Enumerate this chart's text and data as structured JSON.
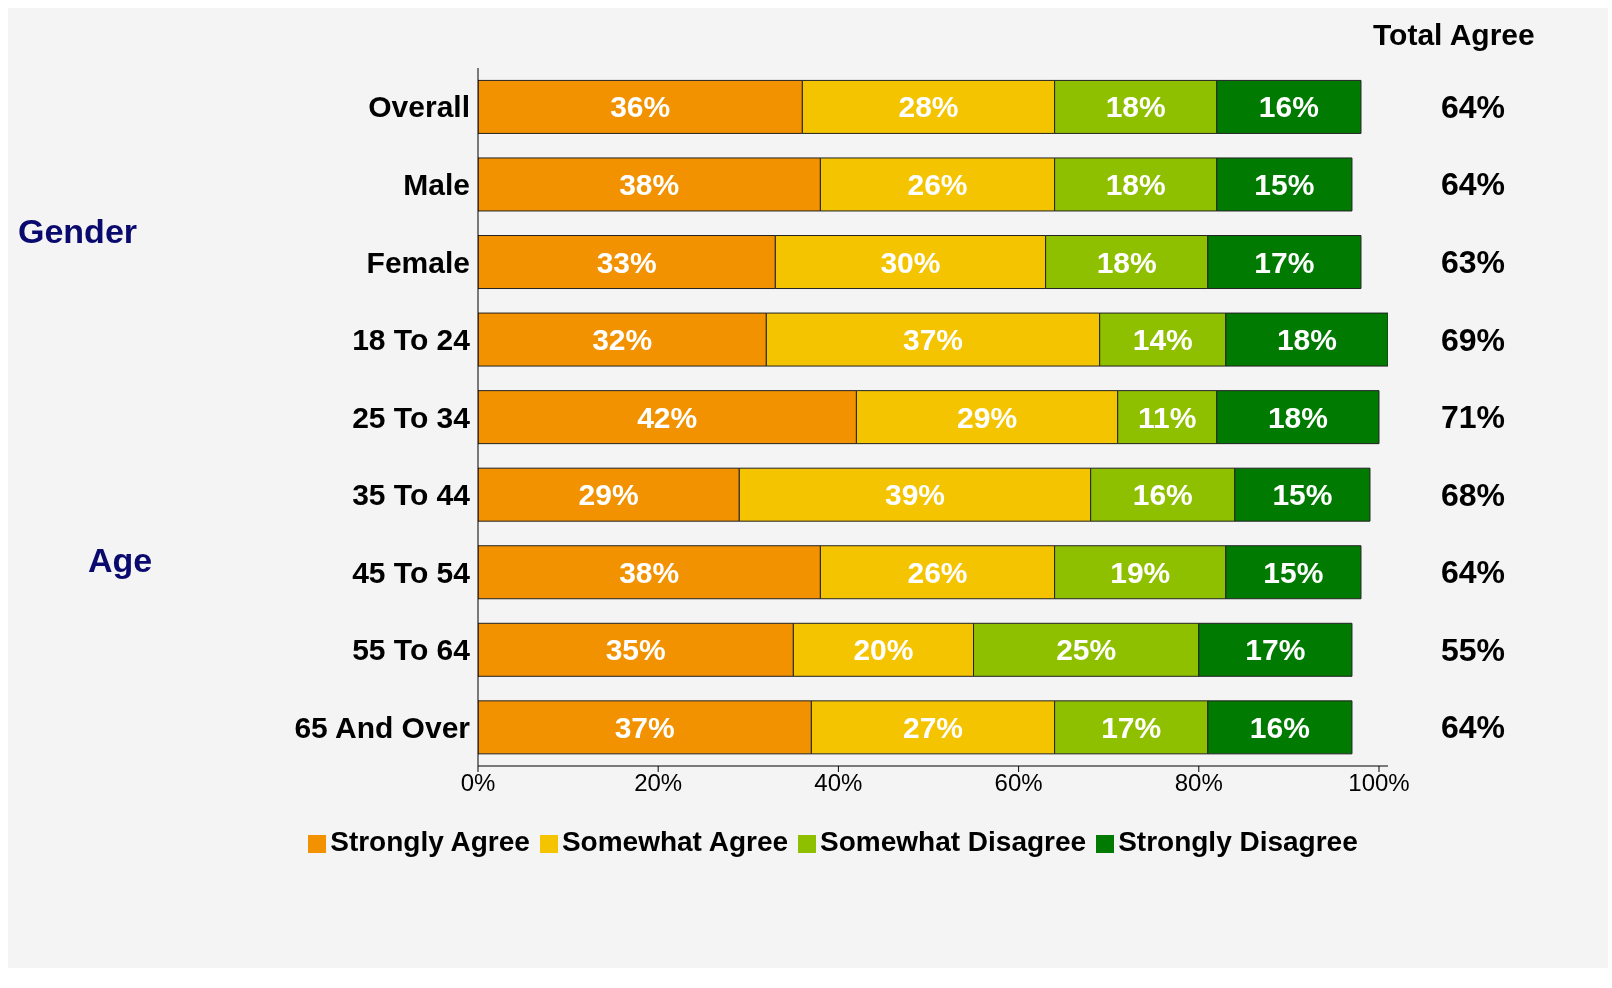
{
  "chart_data": {
    "type": "bar",
    "orientation": "horizontal",
    "stacked": true,
    "categories": [
      "Overall",
      "Male",
      "Female",
      "18 To 24",
      "25 To 34",
      "35 To 44",
      "45 To 54",
      "55 To 64",
      "65 And Over"
    ],
    "series": [
      {
        "name": "Strongly Agree",
        "color": "#f39200",
        "values": [
          36,
          38,
          33,
          32,
          42,
          29,
          38,
          35,
          37
        ],
        "value_labels": [
          "36%",
          "38%",
          "33%",
          "32%",
          "42%",
          "29%",
          "38%",
          "35%",
          "37%"
        ]
      },
      {
        "name": "Somewhat Agree",
        "color": "#f5c400",
        "values": [
          28,
          26,
          30,
          37,
          29,
          39,
          26,
          20,
          27
        ],
        "value_labels": [
          "28%",
          "26%",
          "30%",
          "37%",
          "29%",
          "39%",
          "26%",
          "20%",
          "27%"
        ]
      },
      {
        "name": "Somewhat Disagree",
        "color": "#8fc000",
        "values": [
          18,
          18,
          18,
          14,
          11,
          16,
          19,
          25,
          17
        ],
        "value_labels": [
          "18%",
          "18%",
          "18%",
          "14%",
          "11%",
          "16%",
          "19%",
          "25%",
          "17%"
        ]
      },
      {
        "name": "Strongly Disagree",
        "color": "#007a00",
        "values": [
          16,
          15,
          17,
          18,
          18,
          15,
          15,
          17,
          16
        ],
        "value_labels": [
          "16%",
          "15%",
          "17%",
          "18%",
          "18%",
          "15%",
          "15%",
          "17%",
          "16%"
        ]
      }
    ],
    "xlim": [
      0,
      101
    ],
    "xticks": [
      {
        "value": 0,
        "label": "0%"
      },
      {
        "value": 20,
        "label": "20%"
      },
      {
        "value": 40,
        "label": "40%"
      },
      {
        "value": 60,
        "label": "60%"
      },
      {
        "value": 80,
        "label": "80%"
      },
      {
        "value": 100,
        "label": "100%"
      }
    ],
    "annotations": [
      "Total Agree",
      "Gender",
      "Age",
      "64%",
      "64%",
      "63%",
      "69%",
      "71%",
      "68%",
      "64%",
      "55%",
      "64%"
    ],
    "legend": "bottom",
    "grid": false
  }
}
